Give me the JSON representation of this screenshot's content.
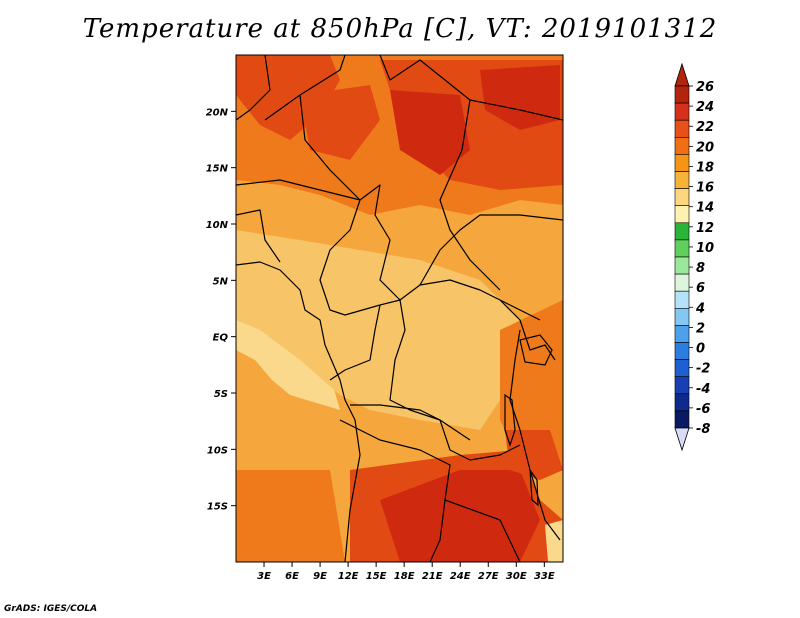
{
  "title": "Temperature at 850hPa [C], VT: 2019101312",
  "credit": "GrADS: IGES/COLA",
  "map": {
    "projection": "lat-lon",
    "lon_range": [
      0,
      35
    ],
    "lat_range": [
      -20,
      25
    ],
    "x_ticks": [
      {
        "lon": 3,
        "label": "3E"
      },
      {
        "lon": 6,
        "label": "6E"
      },
      {
        "lon": 9,
        "label": "9E"
      },
      {
        "lon": 12,
        "label": "12E"
      },
      {
        "lon": 15,
        "label": "15E"
      },
      {
        "lon": 18,
        "label": "18E"
      },
      {
        "lon": 21,
        "label": "21E"
      },
      {
        "lon": 24,
        "label": "24E"
      },
      {
        "lon": 27,
        "label": "27E"
      },
      {
        "lon": 30,
        "label": "30E"
      },
      {
        "lon": 33,
        "label": "33E"
      }
    ],
    "y_ticks": [
      {
        "lat": 20,
        "label": "20N"
      },
      {
        "lat": 15,
        "label": "15N"
      },
      {
        "lat": 10,
        "label": "10N"
      },
      {
        "lat": 5,
        "label": "5N"
      },
      {
        "lat": 0,
        "label": "EQ"
      },
      {
        "lat": -5,
        "label": "5S"
      },
      {
        "lat": -10,
        "label": "10S"
      },
      {
        "lat": -15,
        "label": "15S"
      }
    ]
  },
  "colorbar": {
    "labels": [
      "26",
      "24",
      "22",
      "20",
      "18",
      "16",
      "14",
      "12",
      "10",
      "8",
      "6",
      "4",
      "2",
      "0",
      "-2",
      "-4",
      "-6",
      "-8"
    ],
    "colors_top_to_bottom": [
      "#b4230c",
      "#d7301a",
      "#e8501a",
      "#f06e14",
      "#f59416",
      "#f7b23a",
      "#fcd780",
      "#fdf2b0",
      "#2ab43a",
      "#5fd05e",
      "#9ce89a",
      "#dcf5dc",
      "#b4e2f8",
      "#82c8f2",
      "#4ea0ea",
      "#2b7ee0",
      "#1e5fd2",
      "#1840b4",
      "#0e2a8c",
      "#081a64"
    ],
    "top_cap_color": "#b4230c",
    "bottom_cap_color": "#d8dcf8"
  },
  "field": {
    "colors": {
      "t18": "#f7c468",
      "t20": "#f5a63c",
      "t22": "#ef7a1c",
      "t24": "#e24a14",
      "t26": "#cf2a10",
      "t16": "#fbd98c",
      "t14": "#fce6a4"
    }
  }
}
